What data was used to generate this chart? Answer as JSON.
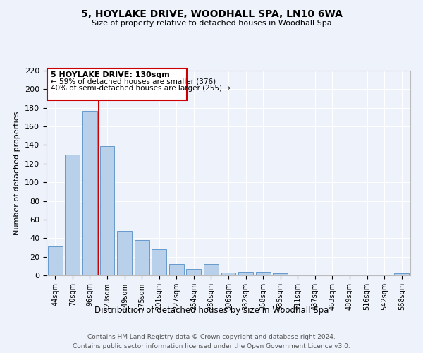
{
  "title": "5, HOYLAKE DRIVE, WOODHALL SPA, LN10 6WA",
  "subtitle": "Size of property relative to detached houses in Woodhall Spa",
  "xlabel": "Distribution of detached houses by size in Woodhall Spa",
  "ylabel": "Number of detached properties",
  "bar_color": "#b8d0ea",
  "bar_edge_color": "#6699cc",
  "background_color": "#eef2fb",
  "grid_color": "#ffffff",
  "annotation_box_color": "#cc0000",
  "redline_color": "#cc0000",
  "categories": [
    "44sqm",
    "70sqm",
    "96sqm",
    "123sqm",
    "149sqm",
    "175sqm",
    "201sqm",
    "227sqm",
    "254sqm",
    "280sqm",
    "306sqm",
    "332sqm",
    "358sqm",
    "385sqm",
    "411sqm",
    "437sqm",
    "463sqm",
    "489sqm",
    "516sqm",
    "542sqm",
    "568sqm"
  ],
  "values": [
    31,
    130,
    177,
    139,
    48,
    38,
    28,
    12,
    7,
    12,
    3,
    4,
    4,
    2,
    0,
    1,
    0,
    1,
    0,
    0,
    2
  ],
  "ylim": [
    0,
    220
  ],
  "yticks": [
    0,
    20,
    40,
    60,
    80,
    100,
    120,
    140,
    160,
    180,
    200,
    220
  ],
  "property_label": "5 HOYLAKE DRIVE: 130sqm",
  "annotation_line1": "← 59% of detached houses are smaller (376)",
  "annotation_line2": "40% of semi-detached houses are larger (255) →",
  "footer_line1": "Contains HM Land Registry data © Crown copyright and database right 2024.",
  "footer_line2": "Contains public sector information licensed under the Open Government Licence v3.0."
}
